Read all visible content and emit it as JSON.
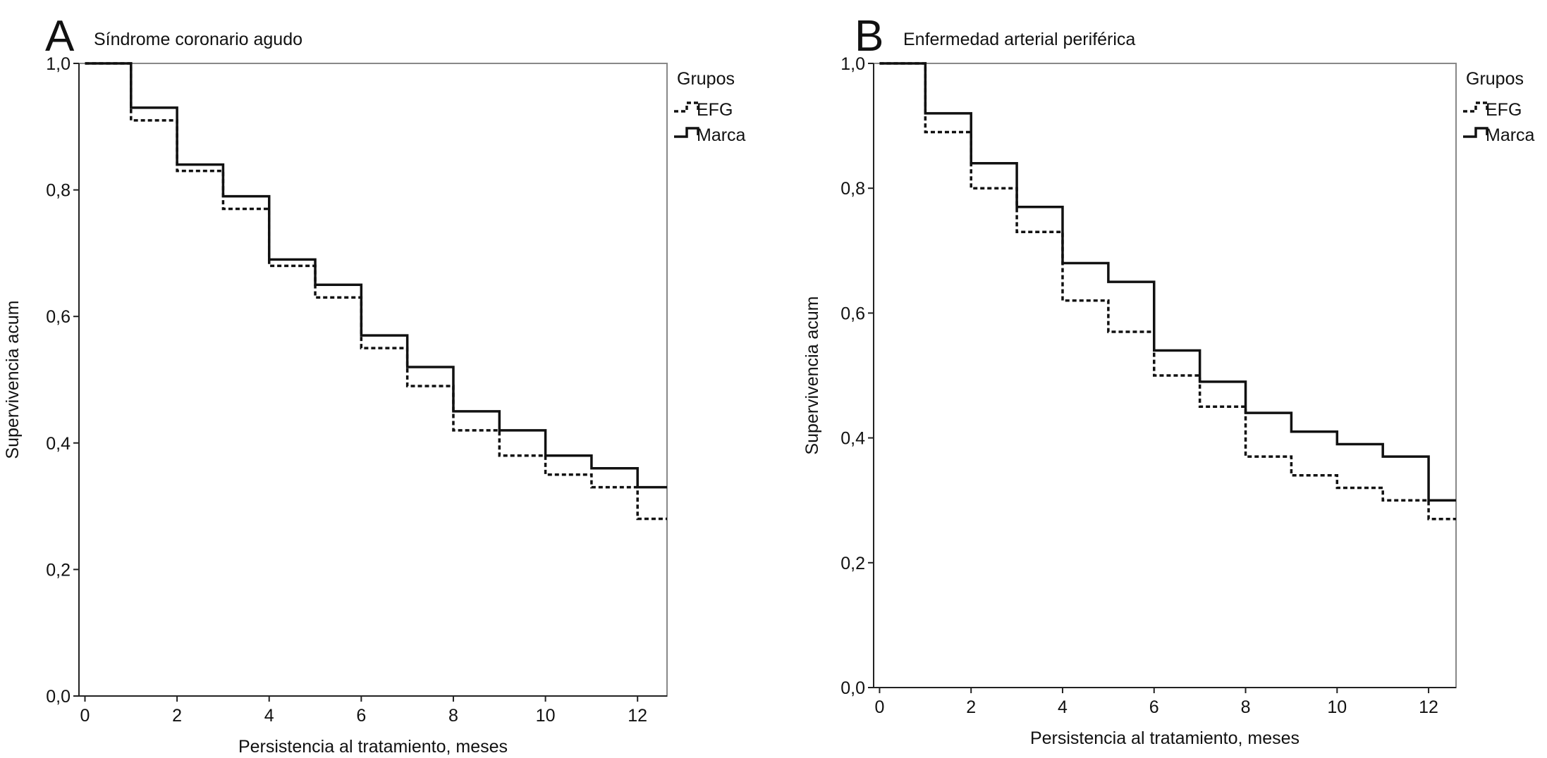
{
  "chart_data": [
    {
      "type": "step",
      "panel": "A",
      "title": "Síndrome coronario agudo",
      "x_label": "Persistencia al tratamiento, meses",
      "y_label": "Supervivencia acum",
      "x": [
        0,
        1,
        2,
        3,
        4,
        5,
        6,
        7,
        8,
        9,
        10,
        11,
        12
      ],
      "series": [
        {
          "name": "EFG",
          "color": "#111111",
          "line_style": "dashed",
          "values": [
            1.0,
            0.91,
            0.83,
            0.77,
            0.68,
            0.63,
            0.55,
            0.49,
            0.42,
            0.38,
            0.35,
            0.33,
            0.28
          ]
        },
        {
          "name": "Marca",
          "color": "#111111",
          "line_style": "solid",
          "values": [
            1.0,
            0.93,
            0.84,
            0.79,
            0.69,
            0.65,
            0.57,
            0.52,
            0.45,
            0.42,
            0.38,
            0.36,
            0.33
          ]
        }
      ],
      "legend_title": "Grupos",
      "legend": "right",
      "xlim": [
        -0.13,
        12.64
      ],
      "xticks": [
        0,
        2,
        4,
        6,
        8,
        10,
        12
      ],
      "ylim": [
        0,
        1
      ],
      "yticks": [
        {
          "value": 0,
          "label": "0,0"
        },
        {
          "value": 0.2,
          "label": "0,2"
        },
        {
          "value": 0.4,
          "label": "0,4"
        },
        {
          "value": 0.6,
          "label": "0,6"
        },
        {
          "value": 0.8,
          "label": "0,8"
        },
        {
          "value": 1,
          "label": "1,0"
        }
      ],
      "grid": false
    },
    {
      "type": "step",
      "panel": "B",
      "title": "Enfermedad arterial periférica",
      "x_label": "Persistencia al tratamiento, meses",
      "y_label": "Supervivencia acum",
      "x": [
        0,
        1,
        2,
        3,
        4,
        5,
        6,
        7,
        8,
        9,
        10,
        11,
        12
      ],
      "series": [
        {
          "name": "EFG",
          "color": "#111111",
          "line_style": "dashed",
          "values": [
            1.0,
            0.89,
            0.8,
            0.73,
            0.62,
            0.57,
            0.5,
            0.45,
            0.37,
            0.34,
            0.32,
            0.3,
            0.27
          ]
        },
        {
          "name": "Marca",
          "color": "#111111",
          "line_style": "solid",
          "values": [
            1.0,
            0.92,
            0.84,
            0.77,
            0.68,
            0.65,
            0.54,
            0.49,
            0.44,
            0.41,
            0.39,
            0.37,
            0.3
          ]
        }
      ],
      "legend_title": "Grupos",
      "legend": "right",
      "xlim": [
        -0.13,
        12.6
      ],
      "xticks": [
        0,
        2,
        4,
        6,
        8,
        10,
        12
      ],
      "ylim": [
        0,
        1
      ],
      "yticks": [
        {
          "value": 0,
          "label": "0,0"
        },
        {
          "value": 0.2,
          "label": "0,2"
        },
        {
          "value": 0.4,
          "label": "0,4"
        },
        {
          "value": 0.6,
          "label": "0,6"
        },
        {
          "value": 0.8,
          "label": "0,8"
        },
        {
          "value": 1,
          "label": "1,0"
        }
      ],
      "grid": false
    }
  ]
}
